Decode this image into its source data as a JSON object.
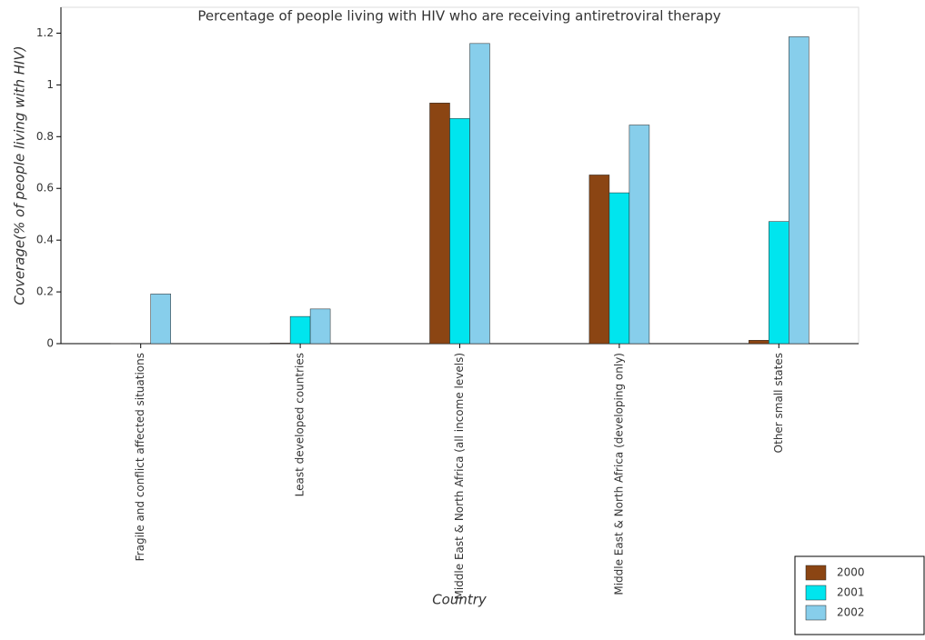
{
  "chart_data": {
    "type": "bar",
    "title": "Percentage of people living with HIV who are receiving antiretroviral therapy",
    "x_label": "Country",
    "y_label": "Coverage(% of people living with HIV)",
    "categories": [
      "Fragile and conflict affected situations",
      "Least developed countries",
      "Middle East & North Africa (all income levels)",
      "Middle East & North Africa (developing only)",
      "Other small states"
    ],
    "series": [
      {
        "name": "2000",
        "color": "#8b4513",
        "values": [
          0.0005,
          0.002,
          0.93,
          0.652,
          0.013
        ]
      },
      {
        "name": "2001",
        "color": "#00e5ee",
        "values": [
          0.001,
          0.105,
          0.87,
          0.583,
          0.472
        ]
      },
      {
        "name": "2002",
        "color": "#87ceeb",
        "values": [
          0.192,
          0.134,
          1.16,
          0.845,
          1.186
        ]
      }
    ],
    "ylim": [
      0,
      1.3
    ],
    "yticks": [
      0,
      {
        "value": 0.2,
        "label": "0.2"
      },
      {
        "value": 0.4,
        "label": "0.4"
      },
      {
        "value": 0.6,
        "label": "0.6"
      },
      {
        "value": 0.8,
        "label": "0.8"
      },
      1,
      {
        "value": 1.2,
        "label": "1.2"
      }
    ],
    "legend": "bottom-right"
  }
}
